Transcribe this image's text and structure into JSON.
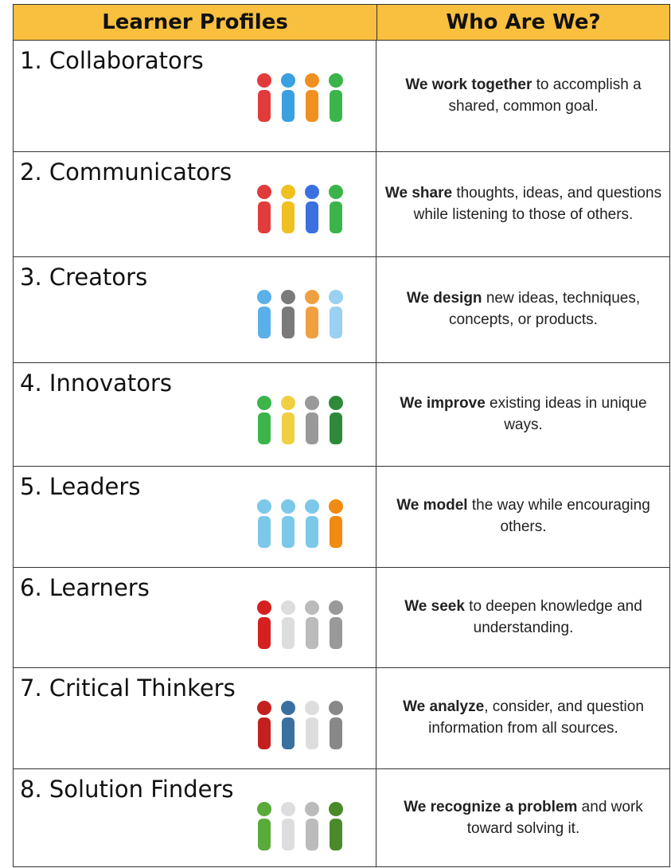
{
  "header": {
    "left": "Learner Profiles",
    "right": "Who Are We?"
  },
  "rows": [
    {
      "profile": "1. Collaborators",
      "bold": "We work together",
      "rest": " to accomplish a shared, common goal."
    },
    {
      "profile": "2. Communicators",
      "bold": "We share",
      "rest": " thoughts, ideas, and questions while listening to those of others."
    },
    {
      "profile": "3. Creators",
      "bold": "We design",
      "rest": " new ideas, techniques, concepts, or products."
    },
    {
      "profile": "4. Innovators",
      "bold": "We improve",
      "rest": " existing ideas in unique ways."
    },
    {
      "profile": "5. Leaders",
      "bold": "We model",
      "rest": " the way while encouraging others."
    },
    {
      "profile": "6. Learners",
      "bold": "We seek",
      "rest": " to deepen knowledge and understanding."
    },
    {
      "profile": "7. Critical Thinkers",
      "bold": "We analyze",
      "rest": ", consider, and question information from all sources."
    },
    {
      "profile": "8. Solution Finders",
      "bold": "We recognize a problem",
      "rest": " and work toward solving it."
    }
  ]
}
